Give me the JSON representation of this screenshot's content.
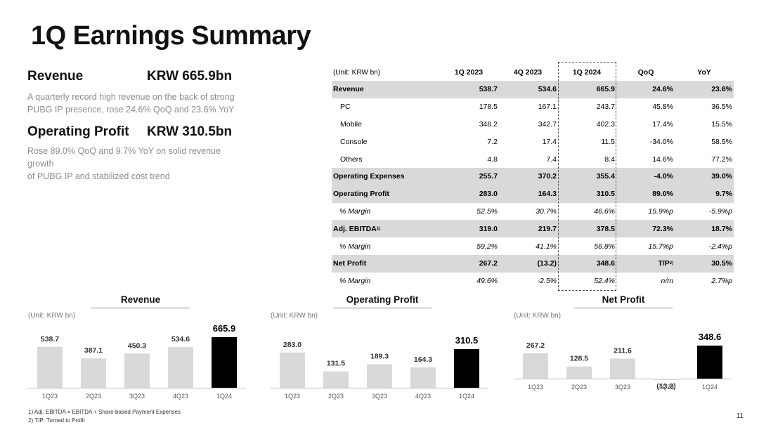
{
  "title": "1Q Earnings Summary",
  "kpis": {
    "revenue_label": "Revenue",
    "revenue_value": "KRW 665.9bn",
    "revenue_desc_1": "A quarterly record high revenue on the back of strong",
    "revenue_desc_2": "PUBG IP presence, rose 24.6% QoQ and 23.6% YoY",
    "op_label": "Operating Profit",
    "op_value": "KRW 310.5bn",
    "op_desc_1": "Rose 89.0% QoQ and 9.7% YoY on solid revenue growth",
    "op_desc_2": "of PUBG IP and stabilized cost trend"
  },
  "table": {
    "unit": "(Unit: KRW bn)",
    "headers": [
      "1Q 2023",
      "4Q 2023",
      "1Q 2024",
      "QoQ",
      "YoY"
    ],
    "rows": [
      {
        "label": "Revenue",
        "values": [
          "538.7",
          "534.6",
          "665.9",
          "24.6%",
          "23.6%"
        ],
        "style": "shaded"
      },
      {
        "label": "PC",
        "values": [
          "178.5",
          "167.1",
          "243.7",
          "45.8%",
          "36.5%"
        ],
        "style": "sub"
      },
      {
        "label": "Mobile",
        "values": [
          "348.2",
          "342.7",
          "402.3",
          "17.4%",
          "15.5%"
        ],
        "style": "sub"
      },
      {
        "label": "Console",
        "values": [
          "7.2",
          "17.4",
          "11.5",
          "-34.0%",
          "58.5%"
        ],
        "style": "sub"
      },
      {
        "label": "Others",
        "values": [
          "4.8",
          "7.4",
          "8.4",
          "14.6%",
          "77.2%"
        ],
        "style": "sub"
      },
      {
        "label": "Operating Expenses",
        "values": [
          "255.7",
          "370.2",
          "355.4",
          "-4.0%",
          "39.0%"
        ],
        "style": "shaded"
      },
      {
        "label": "Operating Profit",
        "values": [
          "283.0",
          "164.3",
          "310.5",
          "89.0%",
          "9.7%"
        ],
        "style": "shaded"
      },
      {
        "label": "% Margin",
        "values": [
          "52.5%",
          "30.7%",
          "46.6%",
          "15.9%p",
          "-5.9%p"
        ],
        "style": "ital"
      },
      {
        "label": "Adj. EBITDA",
        "sup": "1)",
        "values": [
          "319.0",
          "219.7",
          "378.5",
          "72.3%",
          "18.7%"
        ],
        "style": "shaded"
      },
      {
        "label": "% Margin",
        "values": [
          "59.2%",
          "41.1%",
          "56.8%",
          "15.7%p",
          "-2.4%p"
        ],
        "style": "ital"
      },
      {
        "label": "Net Profit",
        "values": [
          "267.2",
          "(13.2)",
          "348.6",
          "T/P",
          "30.5%"
        ],
        "sup4": "2)",
        "style": "shaded"
      },
      {
        "label": "% Margin",
        "values": [
          "49.6%",
          "-2.5%",
          "52.4%",
          "n/m",
          "2.7%p"
        ],
        "style": "ital"
      }
    ]
  },
  "chart_data": [
    {
      "type": "bar",
      "title": "Revenue",
      "unit": "(Unit: KRW bn)",
      "categories": [
        "1Q23",
        "2Q23",
        "3Q23",
        "4Q23",
        "1Q24"
      ],
      "values": [
        538.7,
        387.1,
        450.3,
        534.6,
        665.9
      ],
      "labels": [
        "538.7",
        "387.1",
        "450.3",
        "534.6",
        "665.9"
      ],
      "highlight_index": 4,
      "colors": {
        "bar": "#d9d9d9",
        "highlight": "#000000"
      }
    },
    {
      "type": "bar",
      "title": "Operating Profit",
      "unit": "(Unit: KRW bn)",
      "categories": [
        "1Q23",
        "2Q23",
        "3Q23",
        "4Q23",
        "1Q24"
      ],
      "values": [
        283.0,
        131.5,
        189.3,
        164.3,
        310.5
      ],
      "labels": [
        "283.0",
        "131.5",
        "189.3",
        "164.3",
        "310.5"
      ],
      "highlight_index": 4,
      "colors": {
        "bar": "#d9d9d9",
        "highlight": "#000000"
      }
    },
    {
      "type": "bar",
      "title": "Net Profit",
      "unit": "(Unit: KRW bn)",
      "categories": [
        "1Q23",
        "2Q23",
        "3Q23",
        "4Q23",
        "1Q24"
      ],
      "values": [
        267.2,
        128.5,
        211.6,
        -13.2,
        348.6
      ],
      "labels": [
        "267.2",
        "128.5",
        "211.6",
        "(13.2)",
        "348.6"
      ],
      "highlight_index": 4,
      "colors": {
        "bar": "#d9d9d9",
        "highlight": "#000000"
      }
    }
  ],
  "footnotes": {
    "f1": "1) Adj. EBITDA = EBITDA + Share-based Payment Expenses",
    "f2": "2) T/P: Turned to Profit"
  },
  "page_number": "11"
}
